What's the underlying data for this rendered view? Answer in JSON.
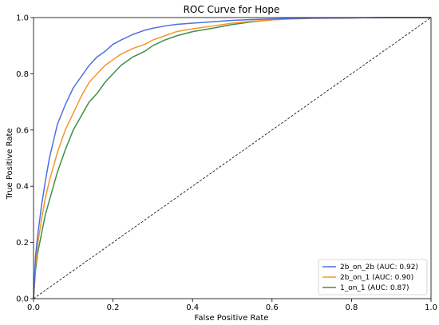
{
  "chart_data": {
    "type": "line",
    "title": "ROC Curve for Hope",
    "xlabel": "False Positive Rate",
    "ylabel": "True Positive Rate",
    "xlim": [
      0,
      1
    ],
    "ylim": [
      0,
      1
    ],
    "xticks": [
      "0.0",
      "0.2",
      "0.4",
      "0.6",
      "0.8",
      "1.0"
    ],
    "yticks": [
      "0.0",
      "0.2",
      "0.4",
      "0.6",
      "0.8",
      "1.0"
    ],
    "grid": false,
    "legend_position": "lower-right",
    "series": [
      {
        "name": "2b_on_2b (AUC: 0.92)",
        "color": "#4f6fe0",
        "x": [
          0,
          0.005,
          0.01,
          0.02,
          0.03,
          0.04,
          0.05,
          0.06,
          0.08,
          0.1,
          0.12,
          0.14,
          0.16,
          0.18,
          0.2,
          0.22,
          0.25,
          0.28,
          0.3,
          0.33,
          0.36,
          0.4,
          0.45,
          0.5,
          0.55,
          0.6,
          0.65,
          0.7,
          0.8,
          0.9,
          1.0
        ],
        "y": [
          0,
          0.15,
          0.22,
          0.33,
          0.42,
          0.5,
          0.56,
          0.62,
          0.69,
          0.75,
          0.79,
          0.83,
          0.86,
          0.88,
          0.905,
          0.92,
          0.94,
          0.955,
          0.962,
          0.97,
          0.976,
          0.98,
          0.985,
          0.99,
          0.993,
          0.995,
          0.997,
          0.998,
          0.999,
          1.0,
          1.0
        ]
      },
      {
        "name": "2b_on_1 (AUC: 0.90)",
        "color": "#f5962a",
        "x": [
          0,
          0.005,
          0.01,
          0.02,
          0.03,
          0.04,
          0.05,
          0.06,
          0.08,
          0.1,
          0.12,
          0.14,
          0.16,
          0.18,
          0.2,
          0.22,
          0.25,
          0.28,
          0.3,
          0.33,
          0.36,
          0.4,
          0.45,
          0.5,
          0.55,
          0.6,
          0.65,
          0.7,
          0.8,
          0.9,
          1.0
        ],
        "y": [
          0,
          0.12,
          0.19,
          0.28,
          0.36,
          0.42,
          0.47,
          0.52,
          0.6,
          0.66,
          0.72,
          0.77,
          0.8,
          0.83,
          0.85,
          0.87,
          0.89,
          0.905,
          0.92,
          0.935,
          0.95,
          0.96,
          0.97,
          0.98,
          0.987,
          0.992,
          0.995,
          0.997,
          0.999,
          1.0,
          1.0
        ]
      },
      {
        "name": "1_on_1 (AUC: 0.87)",
        "color": "#3f8f4a",
        "x": [
          0,
          0.005,
          0.01,
          0.02,
          0.03,
          0.04,
          0.05,
          0.06,
          0.08,
          0.1,
          0.12,
          0.14,
          0.16,
          0.18,
          0.2,
          0.22,
          0.25,
          0.28,
          0.3,
          0.33,
          0.36,
          0.4,
          0.45,
          0.5,
          0.55,
          0.6,
          0.65,
          0.7,
          0.8,
          0.9,
          1.0
        ],
        "y": [
          0,
          0.1,
          0.16,
          0.23,
          0.3,
          0.35,
          0.4,
          0.45,
          0.53,
          0.6,
          0.65,
          0.7,
          0.73,
          0.77,
          0.8,
          0.83,
          0.86,
          0.88,
          0.9,
          0.92,
          0.935,
          0.95,
          0.962,
          0.975,
          0.985,
          0.992,
          0.996,
          0.998,
          0.999,
          1.0,
          1.0
        ]
      }
    ],
    "reference_line": {
      "x": [
        0,
        1
      ],
      "y": [
        0,
        1
      ],
      "color": "#000000",
      "style": "dashed"
    }
  }
}
